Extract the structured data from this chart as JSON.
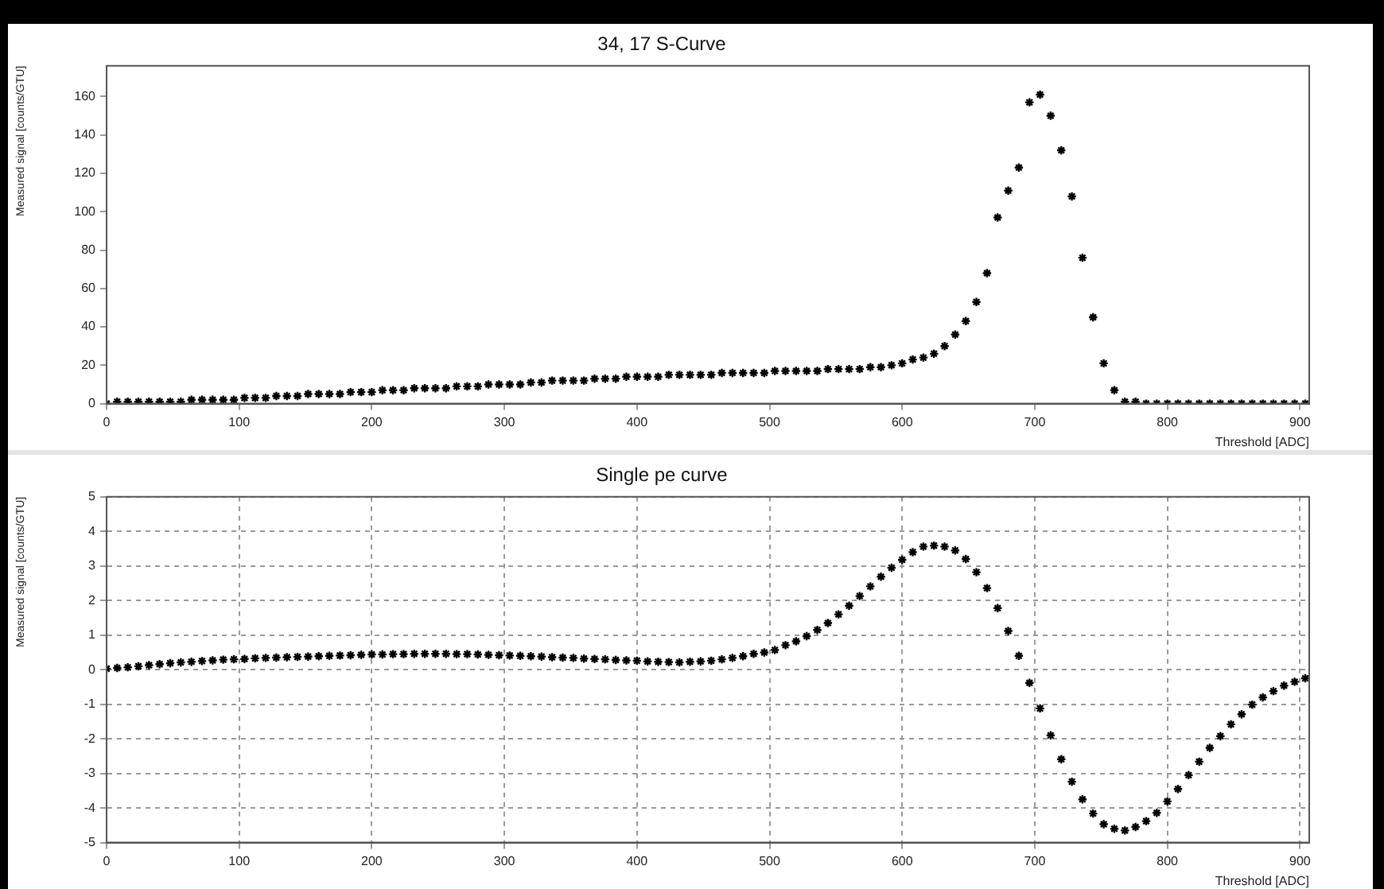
{
  "chart_data": [
    {
      "type": "scatter",
      "title": "34, 17 S-Curve",
      "xlabel": "Threshold [ADC]",
      "ylabel": "Measured signal [counts/GTU]",
      "xlim": [
        0,
        907
      ],
      "xticks": [
        0,
        100,
        200,
        300,
        400,
        500,
        600,
        700,
        800,
        900
      ],
      "ylim": [
        0,
        176
      ],
      "yticks": [
        0,
        20,
        40,
        60,
        80,
        100,
        120,
        140,
        160
      ],
      "marker": "cross",
      "grid": false,
      "legend": false,
      "x": [
        0,
        8,
        16,
        24,
        32,
        40,
        48,
        56,
        64,
        72,
        80,
        88,
        96,
        104,
        112,
        120,
        128,
        136,
        144,
        152,
        160,
        168,
        176,
        184,
        192,
        200,
        208,
        216,
        224,
        232,
        240,
        248,
        256,
        264,
        272,
        280,
        288,
        296,
        304,
        312,
        320,
        328,
        336,
        344,
        352,
        360,
        368,
        376,
        384,
        392,
        400,
        408,
        416,
        424,
        432,
        440,
        448,
        456,
        464,
        472,
        480,
        488,
        496,
        504,
        512,
        520,
        528,
        536,
        544,
        552,
        560,
        568,
        576,
        584,
        592,
        600,
        608,
        616,
        624,
        632,
        640,
        648,
        656,
        664,
        672,
        680,
        688,
        696,
        704,
        712,
        720,
        728,
        736,
        744,
        752,
        760,
        768,
        776,
        784,
        792,
        800,
        808,
        816,
        824,
        832,
        840,
        848,
        856,
        864,
        872,
        880,
        888,
        896,
        904
      ],
      "series": [
        {
          "color": "#000000",
          "values": [
            0,
            1,
            1,
            1,
            1,
            1,
            1,
            1,
            2,
            2,
            2,
            2,
            2,
            3,
            3,
            3,
            4,
            4,
            4,
            5,
            5,
            5,
            5,
            6,
            6,
            6,
            7,
            7,
            7,
            8,
            8,
            8,
            8,
            9,
            9,
            9,
            10,
            10,
            10,
            10,
            11,
            11,
            12,
            12,
            12,
            12,
            13,
            13,
            13,
            14,
            14,
            14,
            14,
            15,
            15,
            15,
            15,
            15,
            16,
            16,
            16,
            16,
            16,
            17,
            17,
            17,
            17,
            17,
            18,
            18,
            18,
            18,
            19,
            19,
            20,
            21,
            23,
            24,
            26,
            30,
            36,
            43,
            53,
            68,
            97,
            111,
            123,
            157,
            161,
            150,
            132,
            108,
            76,
            45,
            21,
            7,
            1,
            1,
            0,
            0,
            0,
            0,
            0,
            0,
            0,
            0,
            0,
            0,
            0,
            0,
            0,
            0,
            0,
            0
          ]
        }
      ]
    },
    {
      "type": "scatter",
      "title": "Single pe curve",
      "xlabel": "Threshold [ADC]",
      "ylabel": "Measured signal [counts/GTU]",
      "xlim": [
        0,
        907
      ],
      "xticks": [
        0,
        100,
        200,
        300,
        400,
        500,
        600,
        700,
        800,
        900
      ],
      "ylim": [
        -5,
        5
      ],
      "yticks": [
        -5,
        -4,
        -3,
        -2,
        -1,
        0,
        1,
        2,
        3,
        4,
        5
      ],
      "marker": "cross",
      "grid": true,
      "line_style": "dashed",
      "legend": false,
      "x": [
        0,
        8,
        16,
        24,
        32,
        40,
        48,
        56,
        64,
        72,
        80,
        88,
        96,
        104,
        112,
        120,
        128,
        136,
        144,
        152,
        160,
        168,
        176,
        184,
        192,
        200,
        208,
        216,
        224,
        232,
        240,
        248,
        256,
        264,
        272,
        280,
        288,
        296,
        304,
        312,
        320,
        328,
        336,
        344,
        352,
        360,
        368,
        376,
        384,
        392,
        400,
        408,
        416,
        424,
        432,
        440,
        448,
        456,
        464,
        472,
        480,
        488,
        496,
        504,
        512,
        520,
        528,
        536,
        544,
        552,
        560,
        568,
        576,
        584,
        592,
        600,
        608,
        616,
        624,
        632,
        640,
        648,
        656,
        664,
        672,
        680,
        688,
        696,
        704,
        712,
        720,
        728,
        736,
        744,
        752,
        760,
        768,
        776,
        784,
        792,
        800,
        808,
        816,
        824,
        832,
        840,
        848,
        856,
        864,
        872,
        880,
        888,
        896,
        904
      ],
      "series": [
        {
          "color": "#000000",
          "values": [
            0.03,
            0.05,
            0.07,
            0.1,
            0.13,
            0.16,
            0.19,
            0.21,
            0.23,
            0.25,
            0.27,
            0.29,
            0.3,
            0.31,
            0.33,
            0.34,
            0.35,
            0.36,
            0.37,
            0.38,
            0.39,
            0.4,
            0.41,
            0.42,
            0.43,
            0.44,
            0.44,
            0.45,
            0.45,
            0.46,
            0.46,
            0.46,
            0.46,
            0.45,
            0.45,
            0.44,
            0.43,
            0.42,
            0.41,
            0.4,
            0.39,
            0.38,
            0.36,
            0.35,
            0.34,
            0.32,
            0.31,
            0.3,
            0.28,
            0.27,
            0.26,
            0.24,
            0.23,
            0.22,
            0.21,
            0.23,
            0.24,
            0.26,
            0.3,
            0.34,
            0.39,
            0.46,
            0.5,
            0.57,
            0.71,
            0.82,
            0.97,
            1.15,
            1.35,
            1.6,
            1.85,
            2.13,
            2.41,
            2.69,
            2.95,
            3.18,
            3.4,
            3.56,
            3.59,
            3.56,
            3.45,
            3.2,
            2.82,
            2.36,
            1.78,
            1.12,
            0.4,
            -0.38,
            -1.12,
            -1.9,
            -2.59,
            -3.24,
            -3.75,
            -4.16,
            -4.47,
            -4.6,
            -4.65,
            -4.55,
            -4.38,
            -4.14,
            -3.81,
            -3.45,
            -3.05,
            -2.66,
            -2.26,
            -1.92,
            -1.58,
            -1.29,
            -1.01,
            -0.8,
            -0.62,
            -0.46,
            -0.35,
            -0.25
          ]
        }
      ]
    }
  ]
}
